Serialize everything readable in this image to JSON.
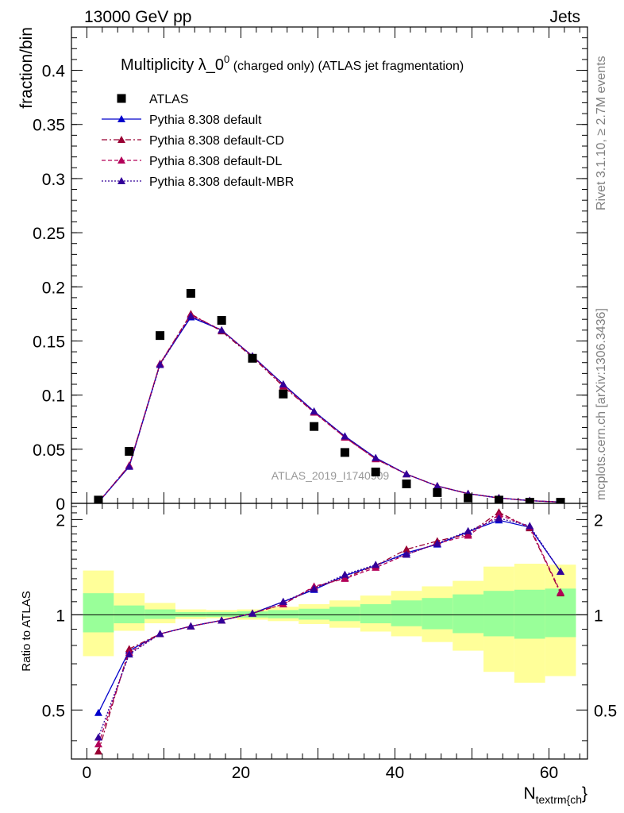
{
  "header": {
    "left": "13000 GeV pp",
    "right": "Jets"
  },
  "side": {
    "rivet": "Rivet 3.1.10, ≥ 2.7M events",
    "mcplots": "mcplots.cern.ch [arXiv:1306.3436]"
  },
  "title": {
    "main": "Multiplicity λ_0",
    "sup": "0",
    "rest": " (charged only) (ATLAS jet fragmentation)"
  },
  "watermark": "ATLAS_2019_I1740909",
  "colors": {
    "data": "#000000",
    "default": "#0000cc",
    "cd": "#990033",
    "dl": "#b30059",
    "mbr": "#330099",
    "band_outer": "#ffff99",
    "band_inner": "#99ff99"
  },
  "chart_data": [
    {
      "type": "scatter",
      "ylabel": "fraction/bin",
      "xlim": [
        -2,
        65
      ],
      "ylim": [
        0,
        0.44
      ],
      "yticks": [
        0,
        0.05,
        0.1,
        0.15,
        0.2,
        0.25,
        0.3,
        0.35,
        0.4
      ],
      "ytick_labels": [
        "0",
        "0.05",
        "0.1",
        "0.15",
        "0.2",
        "0.25",
        "0.3",
        "0.35",
        "0.4"
      ],
      "x": [
        1.5,
        5.5,
        9.5,
        13.5,
        17.5,
        21.5,
        25.5,
        29.5,
        33.5,
        37.5,
        41.5,
        45.5,
        49.5,
        53.5,
        57.5,
        61.5
      ],
      "series": [
        {
          "name": "ATLAS",
          "values": [
            0.003,
            0.048,
            0.155,
            0.194,
            0.169,
            0.134,
            0.101,
            0.071,
            0.047,
            0.029,
            0.018,
            0.01,
            0.005,
            0.003,
            0.001,
            0.001
          ]
        },
        {
          "name": "Pythia 8.308 default",
          "values": [
            0.001,
            0.034,
            0.129,
            0.172,
            0.16,
            0.136,
            0.11,
            0.085,
            0.062,
            0.042,
            0.027,
            0.016,
            0.009,
            0.005,
            0.0025,
            0.0012
          ]
        },
        {
          "name": "Pythia 8.308 default-CD",
          "values": [
            0.001,
            0.035,
            0.129,
            0.175,
            0.159,
            0.135,
            0.108,
            0.084,
            0.061,
            0.041,
            0.027,
            0.016,
            0.009,
            0.005,
            0.0025,
            0.0012
          ]
        },
        {
          "name": "Pythia 8.308 default-DL",
          "values": [
            0.001,
            0.035,
            0.129,
            0.174,
            0.16,
            0.136,
            0.109,
            0.084,
            0.061,
            0.041,
            0.027,
            0.016,
            0.009,
            0.005,
            0.0025,
            0.0012
          ]
        },
        {
          "name": "Pythia 8.308 default-MBR",
          "values": [
            0.001,
            0.034,
            0.128,
            0.173,
            0.16,
            0.136,
            0.11,
            0.085,
            0.062,
            0.042,
            0.027,
            0.016,
            0.009,
            0.005,
            0.0025,
            0.0012
          ]
        }
      ]
    },
    {
      "type": "line",
      "ylabel": "Ratio to ATLAS",
      "xlabel": "N",
      "xlabel_sub": "textrm{ch",
      "xlabel_tail": "}",
      "xlim": [
        -2,
        65
      ],
      "ylim": [
        0.35,
        2.25
      ],
      "yticks": [
        0.5,
        1,
        2
      ],
      "ytick_labels": [
        "0.5",
        "1",
        "2"
      ],
      "xticks": [
        0,
        20,
        40,
        60
      ],
      "xtick_labels": [
        "0",
        "20",
        "40",
        "60"
      ],
      "bins": [
        [
          -0.5,
          3.5
        ],
        [
          3.5,
          7.5
        ],
        [
          7.5,
          11.5
        ],
        [
          11.5,
          15.5
        ],
        [
          15.5,
          19.5
        ],
        [
          19.5,
          23.5
        ],
        [
          23.5,
          27.5
        ],
        [
          27.5,
          31.5
        ],
        [
          31.5,
          35.5
        ],
        [
          35.5,
          39.5
        ],
        [
          39.5,
          43.5
        ],
        [
          43.5,
          47.5
        ],
        [
          47.5,
          51.5
        ],
        [
          51.5,
          55.5
        ],
        [
          55.5,
          59.5
        ],
        [
          59.5,
          63.5
        ]
      ],
      "band_inner": [
        [
          0.88,
          1.17
        ],
        [
          0.94,
          1.07
        ],
        [
          0.97,
          1.04
        ],
        [
          0.985,
          1.02
        ],
        [
          0.985,
          1.02
        ],
        [
          0.98,
          1.025
        ],
        [
          0.975,
          1.035
        ],
        [
          0.965,
          1.045
        ],
        [
          0.955,
          1.06
        ],
        [
          0.94,
          1.08
        ],
        [
          0.92,
          1.11
        ],
        [
          0.9,
          1.13
        ],
        [
          0.875,
          1.16
        ],
        [
          0.855,
          1.19
        ],
        [
          0.84,
          1.2
        ],
        [
          0.85,
          1.21
        ]
      ],
      "band_outer": [
        [
          0.74,
          1.38
        ],
        [
          0.89,
          1.17
        ],
        [
          0.94,
          1.09
        ],
        [
          0.97,
          1.04
        ],
        [
          0.975,
          1.035
        ],
        [
          0.965,
          1.04
        ],
        [
          0.955,
          1.06
        ],
        [
          0.935,
          1.08
        ],
        [
          0.91,
          1.11
        ],
        [
          0.885,
          1.15
        ],
        [
          0.855,
          1.19
        ],
        [
          0.82,
          1.23
        ],
        [
          0.77,
          1.28
        ],
        [
          0.66,
          1.42
        ],
        [
          0.61,
          1.45
        ],
        [
          0.64,
          1.44
        ]
      ],
      "x": [
        1.5,
        5.5,
        9.5,
        13.5,
        17.5,
        21.5,
        25.5,
        29.5,
        33.5,
        37.5,
        41.5,
        45.5,
        49.5,
        53.5,
        57.5,
        61.5
      ],
      "series": [
        {
          "name": "Pythia 8.308 default",
          "values": [
            0.49,
            0.77,
            0.87,
            0.92,
            0.96,
            1.01,
            1.1,
            1.2,
            1.33,
            1.43,
            1.57,
            1.67,
            1.83,
            1.99,
            1.89,
            1.37
          ]
        },
        {
          "name": "Pythia 8.308 default-CD",
          "values": [
            0.37,
            0.78,
            0.87,
            0.92,
            0.96,
            1.01,
            1.08,
            1.22,
            1.31,
            1.43,
            1.61,
            1.71,
            1.8,
            2.11,
            1.88,
            1.17
          ]
        },
        {
          "name": "Pythia 8.308 default-DL",
          "values": [
            0.39,
            0.76,
            0.87,
            0.92,
            0.96,
            1.01,
            1.08,
            1.23,
            1.3,
            1.41,
            1.55,
            1.68,
            1.78,
            2.07,
            1.9,
            1.18
          ]
        },
        {
          "name": "Pythia 8.308 default-MBR",
          "values": [
            0.41,
            0.75,
            0.87,
            0.92,
            0.96,
            1.01,
            1.1,
            1.21,
            1.34,
            1.44,
            1.55,
            1.68,
            1.84,
            2.02,
            1.91,
            1.37
          ]
        }
      ]
    }
  ]
}
